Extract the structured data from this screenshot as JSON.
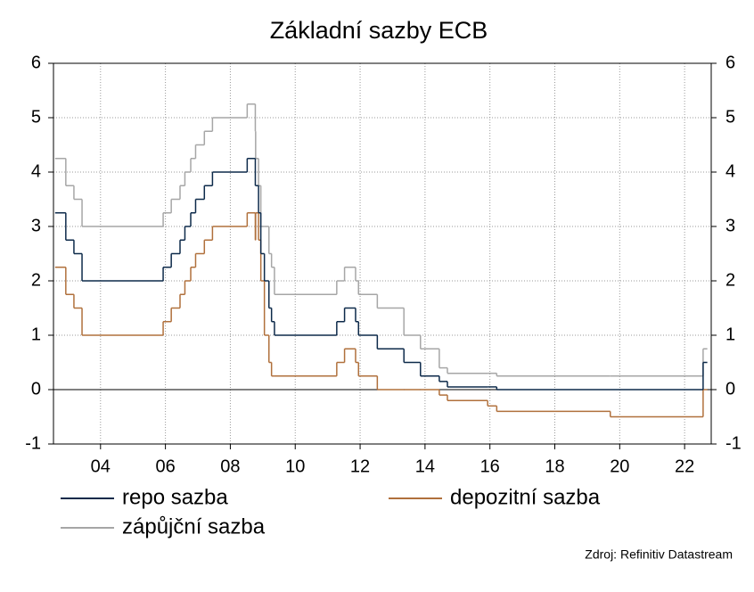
{
  "chart_data": {
    "type": "step-line",
    "title": "Základní sazby ECB",
    "x": [
      2002.6,
      2002.93,
      2003.18,
      2003.43,
      2005.93,
      2006.18,
      2006.45,
      2006.6,
      2006.78,
      2006.93,
      2007.2,
      2007.45,
      2008.52,
      2008.77,
      2008.78,
      2008.87,
      2008.94,
      2009.05,
      2009.19,
      2009.27,
      2009.36,
      2011.28,
      2011.52,
      2011.86,
      2011.95,
      2012.53,
      2013.35,
      2013.86,
      2014.44,
      2014.69,
      2015.93,
      2016.21,
      2019.71,
      2022.57,
      2022.7
    ],
    "series": [
      {
        "name": "zápůjční sazba",
        "color": "#a6a6a6",
        "values": [
          4.25,
          3.75,
          3.5,
          3.0,
          3.25,
          3.5,
          3.75,
          4.0,
          4.25,
          4.5,
          4.75,
          5.0,
          5.25,
          4.75,
          4.25,
          3.75,
          3.0,
          3.0,
          2.5,
          2.25,
          1.75,
          2.0,
          2.25,
          2.0,
          1.75,
          1.5,
          1.0,
          0.75,
          0.4,
          0.3,
          0.3,
          0.25,
          0.25,
          0.75,
          0.75
        ]
      },
      {
        "name": "depozitní sazba",
        "color": "#b0703c",
        "values": [
          2.25,
          1.75,
          1.5,
          1.0,
          1.25,
          1.5,
          1.75,
          2.0,
          2.25,
          2.5,
          2.75,
          3.0,
          3.25,
          2.75,
          3.25,
          2.75,
          2.0,
          1.0,
          0.5,
          0.25,
          0.25,
          0.5,
          0.75,
          0.5,
          0.25,
          0.0,
          0.0,
          0.0,
          -0.1,
          -0.2,
          -0.3,
          -0.4,
          -0.5,
          0.0,
          0.0
        ]
      },
      {
        "name": "repo sazba",
        "color": "#0d2a4a",
        "values": [
          3.25,
          2.75,
          2.5,
          2.0,
          2.25,
          2.5,
          2.75,
          3.0,
          3.25,
          3.5,
          3.75,
          4.0,
          4.25,
          3.75,
          3.75,
          3.25,
          2.5,
          2.0,
          1.5,
          1.25,
          1.0,
          1.25,
          1.5,
          1.25,
          1.0,
          0.75,
          0.5,
          0.25,
          0.15,
          0.05,
          0.05,
          0.0,
          0.0,
          0.5,
          0.5
        ]
      }
    ],
    "legend_order": [
      "repo sazba",
      "depozitní sazba",
      "zápůjční sazba"
    ],
    "xlim": [
      2002.55,
      2022.82
    ],
    "xticks": [
      {
        "value": 2004,
        "label": "04"
      },
      {
        "value": 2006,
        "label": "06"
      },
      {
        "value": 2008,
        "label": "08"
      },
      {
        "value": 2010,
        "label": "10"
      },
      {
        "value": 2012,
        "label": "12"
      },
      {
        "value": 2014,
        "label": "14"
      },
      {
        "value": 2016,
        "label": "16"
      },
      {
        "value": 2018,
        "label": "18"
      },
      {
        "value": 2020,
        "label": "20"
      },
      {
        "value": 2022,
        "label": "22"
      }
    ],
    "ylim": [
      -1,
      6
    ],
    "yticks": [
      -1,
      0,
      1,
      2,
      3,
      4,
      5,
      6
    ],
    "y2lim": [
      -1,
      6
    ],
    "y2ticks": [
      -1,
      0,
      1,
      2,
      3,
      4,
      5,
      6
    ],
    "grid": true,
    "zero_line_color": "#000000",
    "source": "Zdroj: Refinitiv Datastream"
  }
}
